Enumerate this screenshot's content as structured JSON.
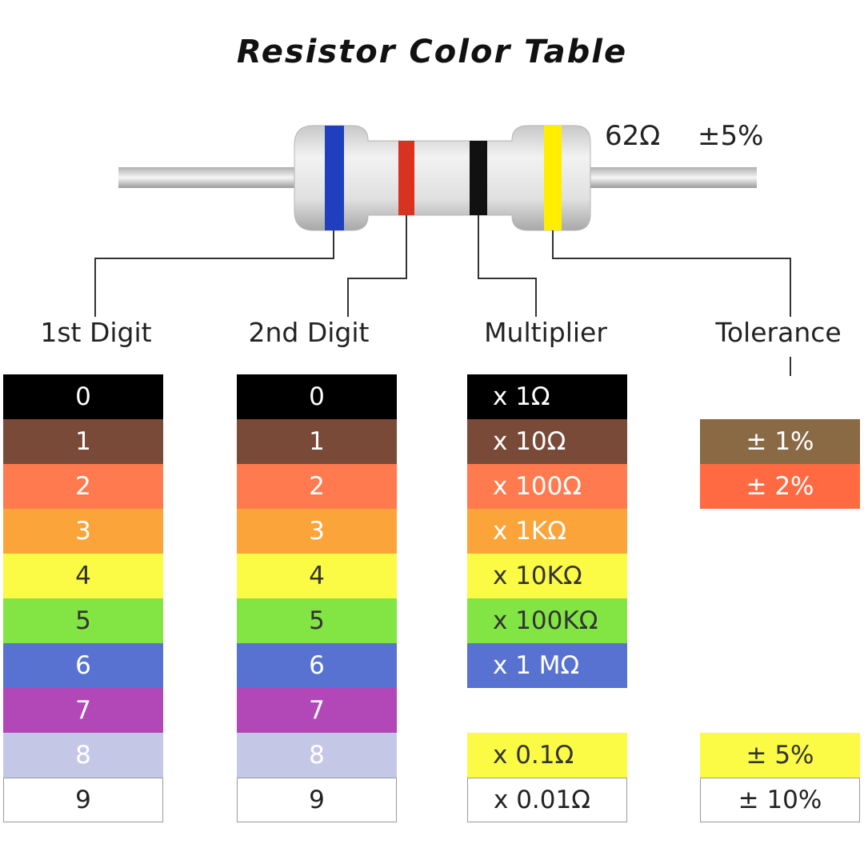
{
  "title": "Resistor Color Table",
  "example": {
    "resistance": "62Ω",
    "tolerance": "±5%",
    "body_color": "#d9d9d9",
    "band_colors": [
      "#1f3fbf",
      "#d83220",
      "#111111",
      "#ffee00"
    ]
  },
  "headers": {
    "first_digit": "1st Digit",
    "second_digit": "2nd Digit",
    "multiplier": "Multiplier",
    "tolerance": "Tolerance"
  },
  "digits": [
    {
      "label": "0",
      "bg": "#000000",
      "fg": "#ffffff"
    },
    {
      "label": "1",
      "bg": "#7a4a38",
      "fg": "#ffffff"
    },
    {
      "label": "2",
      "bg": "#ff7a4e",
      "fg": "#ffffff"
    },
    {
      "label": "3",
      "bg": "#fba43a",
      "fg": "#ffffff"
    },
    {
      "label": "4",
      "bg": "#fbfb46",
      "fg": "#333333"
    },
    {
      "label": "5",
      "bg": "#82e544",
      "fg": "#333333"
    },
    {
      "label": "6",
      "bg": "#5872d1",
      "fg": "#ffffff"
    },
    {
      "label": "7",
      "bg": "#b248b8",
      "fg": "#ffffff"
    },
    {
      "label": "8",
      "bg": "#c4c8e6",
      "fg": "#ffffff"
    },
    {
      "label": "9",
      "bg": "#ffffff",
      "fg": "#222222"
    }
  ],
  "multipliers": [
    {
      "label": "x 1Ω",
      "bg": "#000000",
      "fg": "#ffffff",
      "row": 0
    },
    {
      "label": "x 10Ω",
      "bg": "#7a4a38",
      "fg": "#ffffff",
      "row": 1
    },
    {
      "label": "x 100Ω",
      "bg": "#ff7a4e",
      "fg": "#ffffff",
      "row": 2
    },
    {
      "label": "x 1KΩ",
      "bg": "#fba43a",
      "fg": "#ffffff",
      "row": 3
    },
    {
      "label": "x 10KΩ",
      "bg": "#fbfb46",
      "fg": "#333333",
      "row": 4
    },
    {
      "label": "x 100KΩ",
      "bg": "#82e544",
      "fg": "#333333",
      "row": 5
    },
    {
      "label": "x 1 MΩ",
      "bg": "#5872d1",
      "fg": "#ffffff",
      "row": 6
    },
    {
      "label": "x 0.1Ω",
      "bg": "#fbfb46",
      "fg": "#333333",
      "row": 8
    },
    {
      "label": "x 0.01Ω",
      "bg": "#ffffff",
      "fg": "#222222",
      "row": 9
    }
  ],
  "tolerances": [
    {
      "label": "± 1%",
      "bg": "#8a6a45",
      "fg": "#ffffff",
      "row": 1
    },
    {
      "label": "± 2%",
      "bg": "#ff6a43",
      "fg": "#ffffff",
      "row": 2
    },
    {
      "label": "± 5%",
      "bg": "#fbfb46",
      "fg": "#333333",
      "row": 8
    },
    {
      "label": "± 10%",
      "bg": "#ffffff",
      "fg": "#222222",
      "row": 9
    }
  ]
}
